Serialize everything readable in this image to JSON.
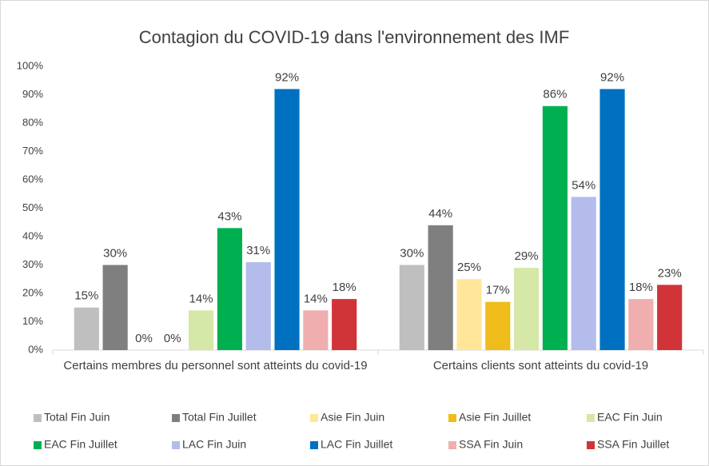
{
  "chart_data": {
    "type": "bar",
    "title": "Contagion du COVID-19 dans l'environnement des IMF",
    "categories": [
      "Certains membres du personnel sont atteints du covid-19",
      "Certains clients sont atteints du covid-19"
    ],
    "series": [
      {
        "name": "Total Fin Juin",
        "color": "#bfbfbf",
        "values": [
          15,
          30
        ],
        "value_labels": [
          "15%",
          "30%"
        ]
      },
      {
        "name": "Total Fin Juillet",
        "color": "#7f7f7f",
        "values": [
          30,
          44
        ],
        "value_labels": [
          "30%",
          "44%"
        ]
      },
      {
        "name": "Asie Fin Juin",
        "color": "#ffe699",
        "values": [
          0,
          25
        ],
        "value_labels": [
          "0%",
          "25%"
        ]
      },
      {
        "name": "Asie Fin Juillet",
        "color": "#f0bc1c",
        "values": [
          0,
          17
        ],
        "value_labels": [
          "0%",
          "17%"
        ]
      },
      {
        "name": "EAC Fin Juin",
        "color": "#d5e8a8",
        "values": [
          14,
          29
        ],
        "value_labels": [
          "14%",
          "29%"
        ]
      },
      {
        "name": "EAC Fin Juillet",
        "color": "#00b050",
        "values": [
          43,
          86
        ],
        "value_labels": [
          "43%",
          "86%"
        ]
      },
      {
        "name": "LAC Fin Juin",
        "color": "#b4bcec",
        "values": [
          31,
          54
        ],
        "value_labels": [
          "31%",
          "54%"
        ]
      },
      {
        "name": "LAC Fin Juillet",
        "color": "#0070c0",
        "values": [
          92,
          92
        ],
        "value_labels": [
          "92%",
          "92%"
        ]
      },
      {
        "name": "SSA Fin Juin",
        "color": "#f0aeae",
        "values": [
          14,
          18
        ],
        "value_labels": [
          "14%",
          "18%"
        ]
      },
      {
        "name": "SSA Fin Juillet",
        "color": "#d13438",
        "values": [
          18,
          23
        ],
        "value_labels": [
          "18%",
          "23%"
        ]
      }
    ],
    "ylim": [
      0,
      100
    ],
    "yticks": [
      {
        "value": 0,
        "label": "0%"
      },
      {
        "value": 10,
        "label": "10%"
      },
      {
        "value": 20,
        "label": "20%"
      },
      {
        "value": 30,
        "label": "30%"
      },
      {
        "value": 40,
        "label": "40%"
      },
      {
        "value": 50,
        "label": "50%"
      },
      {
        "value": 60,
        "label": "60%"
      },
      {
        "value": 70,
        "label": "70%"
      },
      {
        "value": 80,
        "label": "80%"
      },
      {
        "value": 90,
        "label": "90%"
      },
      {
        "value": 100,
        "label": "100%"
      }
    ],
    "grid": false,
    "legend": "bottom"
  }
}
